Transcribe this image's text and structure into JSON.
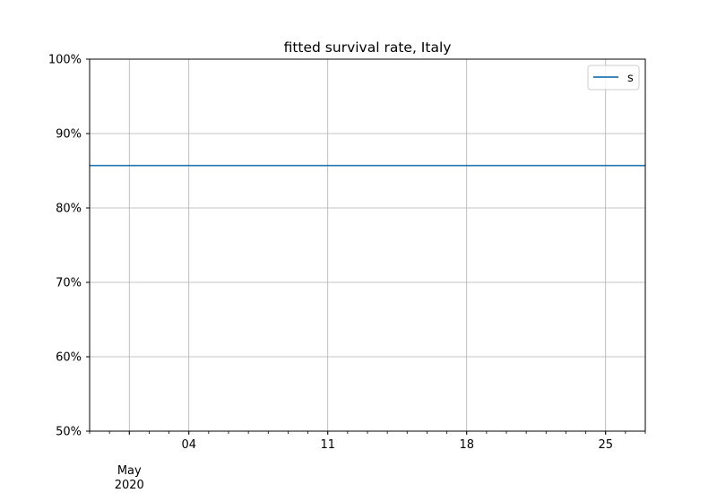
{
  "chart_data": {
    "type": "line",
    "title": "fitted survival rate, Italy",
    "xlabel": "",
    "ylabel": "",
    "x_range": [
      "2020-04-29",
      "2020-05-27"
    ],
    "x_major_ticks": [
      {
        "date": "2020-05-01",
        "label": "May",
        "label2": "2020"
      },
      {
        "date": "2020-05-04",
        "label": "04"
      },
      {
        "date": "2020-05-11",
        "label": "11"
      },
      {
        "date": "2020-05-18",
        "label": "18"
      },
      {
        "date": "2020-05-25",
        "label": "25"
      }
    ],
    "y_range": [
      0.5,
      1.0
    ],
    "y_ticks": [
      {
        "value": 0.5,
        "label": "50%"
      },
      {
        "value": 0.6,
        "label": "60%"
      },
      {
        "value": 0.7,
        "label": "70%"
      },
      {
        "value": 0.8,
        "label": "80%"
      },
      {
        "value": 0.9,
        "label": "90%"
      },
      {
        "value": 1.0,
        "label": "100%"
      }
    ],
    "grid": true,
    "legend": {
      "position": "upper right",
      "entries": [
        "s"
      ]
    },
    "series": [
      {
        "name": "s",
        "color": "#1f77b4",
        "x": [
          "2020-04-29",
          "2020-05-27"
        ],
        "y": [
          0.857,
          0.857
        ]
      }
    ]
  }
}
